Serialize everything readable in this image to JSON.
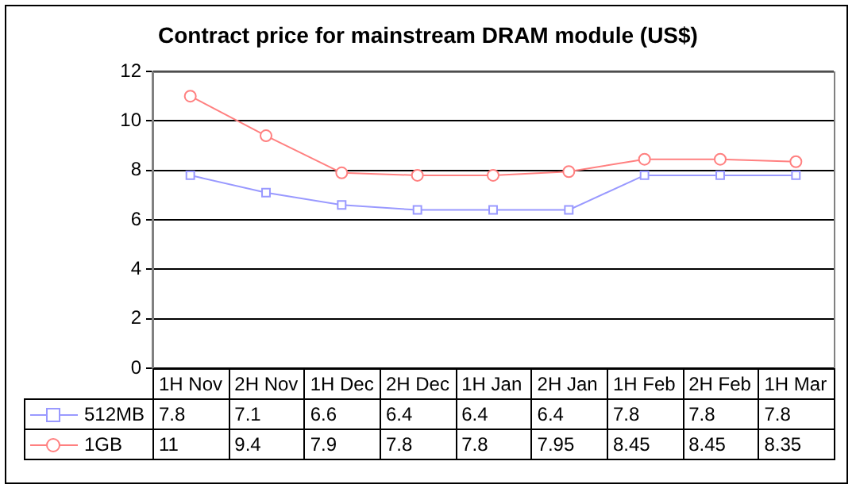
{
  "chart_data": {
    "type": "line",
    "title": "Contract price for mainstream DRAM module (US$)",
    "categories": [
      "1H Nov",
      "2H Nov",
      "1H Dec",
      "2H Dec",
      "1H Jan",
      "2H Jan",
      "1H Feb",
      "2H Feb",
      "1H Mar"
    ],
    "series": [
      {
        "name": "512MB",
        "color": "#9999ff",
        "marker": "square",
        "values": [
          7.8,
          7.1,
          6.6,
          6.4,
          6.4,
          6.4,
          7.8,
          7.8,
          7.8
        ]
      },
      {
        "name": "1GB",
        "color": "#ff8080",
        "marker": "circle",
        "values": [
          11,
          9.4,
          7.9,
          7.8,
          7.8,
          7.95,
          8.45,
          8.45,
          8.35
        ]
      }
    ],
    "ylim": [
      0,
      12
    ],
    "yticks": [
      0,
      2,
      4,
      6,
      8,
      10,
      12
    ],
    "grid": "y",
    "legend": "bottom",
    "data_labels": true
  }
}
